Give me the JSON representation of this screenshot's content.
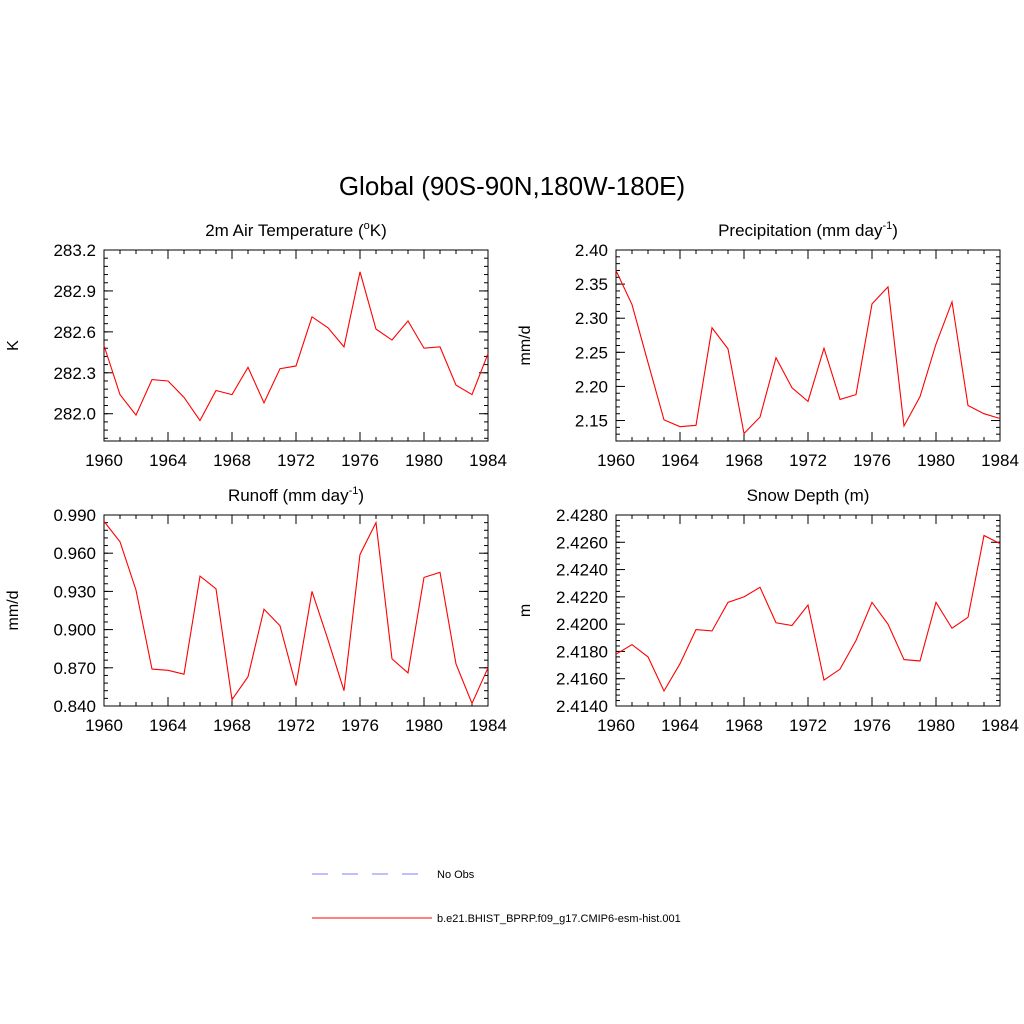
{
  "page_title": "Global (90S-90N,180W-180E)",
  "colors": {
    "model": "#ff0000",
    "obs": "#9999ff",
    "axis": "#000000"
  },
  "legend": [
    {
      "label": "No Obs",
      "style": "dashed",
      "color": "#9999ff"
    },
    {
      "label": "b.e21.BHIST_BPRP.f09_g17.CMIP6-esm-hist.001",
      "style": "solid",
      "color": "#ff0000"
    }
  ],
  "chart_data": [
    {
      "type": "line",
      "title_main": "2m Air Temperature (",
      "title_sup": "o",
      "title_tail": "K)",
      "ylabel": "K",
      "xlim": [
        1960,
        1984
      ],
      "xticks": [
        "1960",
        "1964",
        "1968",
        "1972",
        "1976",
        "1980",
        "1984"
      ],
      "ylim": [
        281.8,
        283.2
      ],
      "yticks": [
        "282.0",
        "282.3",
        "282.6",
        "282.9",
        "283.2"
      ],
      "series": [
        {
          "x": [
            1960,
            1961,
            1962,
            1963,
            1964,
            1965,
            1966,
            1967,
            1968,
            1969,
            1970,
            1971,
            1972,
            1973,
            1974,
            1975,
            1976,
            1977,
            1978,
            1979,
            1980,
            1981,
            1982,
            1983,
            1984
          ],
          "y": [
            282.5,
            282.14,
            281.99,
            282.25,
            282.24,
            282.12,
            281.95,
            282.17,
            282.14,
            282.34,
            282.08,
            282.33,
            282.35,
            282.71,
            282.63,
            282.49,
            283.04,
            282.62,
            282.54,
            282.68,
            282.48,
            282.49,
            282.21,
            282.14,
            282.44
          ]
        }
      ]
    },
    {
      "type": "line",
      "title_main": "Precipitation (mm day",
      "title_sup": "-1",
      "title_tail": ")",
      "ylabel": "mm/d",
      "xlim": [
        1960,
        1984
      ],
      "xticks": [
        "1960",
        "1964",
        "1968",
        "1972",
        "1976",
        "1980",
        "1984"
      ],
      "ylim": [
        2.12,
        2.4
      ],
      "yticks": [
        "2.15",
        "2.20",
        "2.25",
        "2.30",
        "2.35",
        "2.40"
      ],
      "series": [
        {
          "x": [
            1960,
            1961,
            1962,
            1963,
            1964,
            1965,
            1966,
            1967,
            1968,
            1969,
            1970,
            1971,
            1972,
            1973,
            1974,
            1975,
            1976,
            1977,
            1978,
            1979,
            1980,
            1981,
            1982,
            1983,
            1984
          ],
          "y": [
            2.37,
            2.32,
            2.235,
            2.151,
            2.141,
            2.143,
            2.286,
            2.255,
            2.131,
            2.155,
            2.242,
            2.198,
            2.178,
            2.256,
            2.181,
            2.188,
            2.321,
            2.346,
            2.142,
            2.185,
            2.262,
            2.324,
            2.172,
            2.16,
            2.153
          ]
        }
      ]
    },
    {
      "type": "line",
      "title_main": "Runoff (mm day",
      "title_sup": "-1",
      "title_tail": ")",
      "ylabel": "mm/d",
      "xlim": [
        1960,
        1984
      ],
      "xticks": [
        "1960",
        "1964",
        "1968",
        "1972",
        "1976",
        "1980",
        "1984"
      ],
      "ylim": [
        0.84,
        0.99
      ],
      "yticks": [
        "0.840",
        "0.870",
        "0.900",
        "0.930",
        "0.960",
        "0.990"
      ],
      "series": [
        {
          "x": [
            1960,
            1961,
            1962,
            1963,
            1964,
            1965,
            1966,
            1967,
            1968,
            1969,
            1970,
            1971,
            1972,
            1973,
            1974,
            1975,
            1976,
            1977,
            1978,
            1979,
            1980,
            1981,
            1982,
            1983,
            1984
          ],
          "y": [
            0.985,
            0.969,
            0.931,
            0.869,
            0.868,
            0.865,
            0.942,
            0.932,
            0.845,
            0.863,
            0.916,
            0.903,
            0.856,
            0.93,
            0.892,
            0.852,
            0.959,
            0.984,
            0.877,
            0.866,
            0.941,
            0.945,
            0.873,
            0.842,
            0.87
          ]
        }
      ]
    },
    {
      "type": "line",
      "title_main": "Snow Depth (m)",
      "title_sup": "",
      "title_tail": "",
      "ylabel": "m",
      "xlim": [
        1960,
        1984
      ],
      "xticks": [
        "1960",
        "1964",
        "1968",
        "1972",
        "1976",
        "1980",
        "1984"
      ],
      "ylim": [
        2.414,
        2.428
      ],
      "yticks": [
        "2.4140",
        "2.4160",
        "2.4180",
        "2.4200",
        "2.4220",
        "2.4240",
        "2.4260",
        "2.4280"
      ],
      "series": [
        {
          "x": [
            1960,
            1961,
            1962,
            1963,
            1964,
            1965,
            1966,
            1967,
            1968,
            1969,
            1970,
            1971,
            1972,
            1973,
            1974,
            1975,
            1976,
            1977,
            1978,
            1979,
            1980,
            1981,
            1982,
            1983,
            1984
          ],
          "y": [
            2.4178,
            2.4185,
            2.4176,
            2.4151,
            2.4171,
            2.4196,
            2.4195,
            2.4216,
            2.422,
            2.4227,
            2.4201,
            2.4199,
            2.4214,
            2.4159,
            2.4167,
            2.4188,
            2.4216,
            2.42,
            2.4174,
            2.4173,
            2.4216,
            2.4197,
            2.4205,
            2.4265,
            2.4259
          ]
        }
      ]
    }
  ]
}
